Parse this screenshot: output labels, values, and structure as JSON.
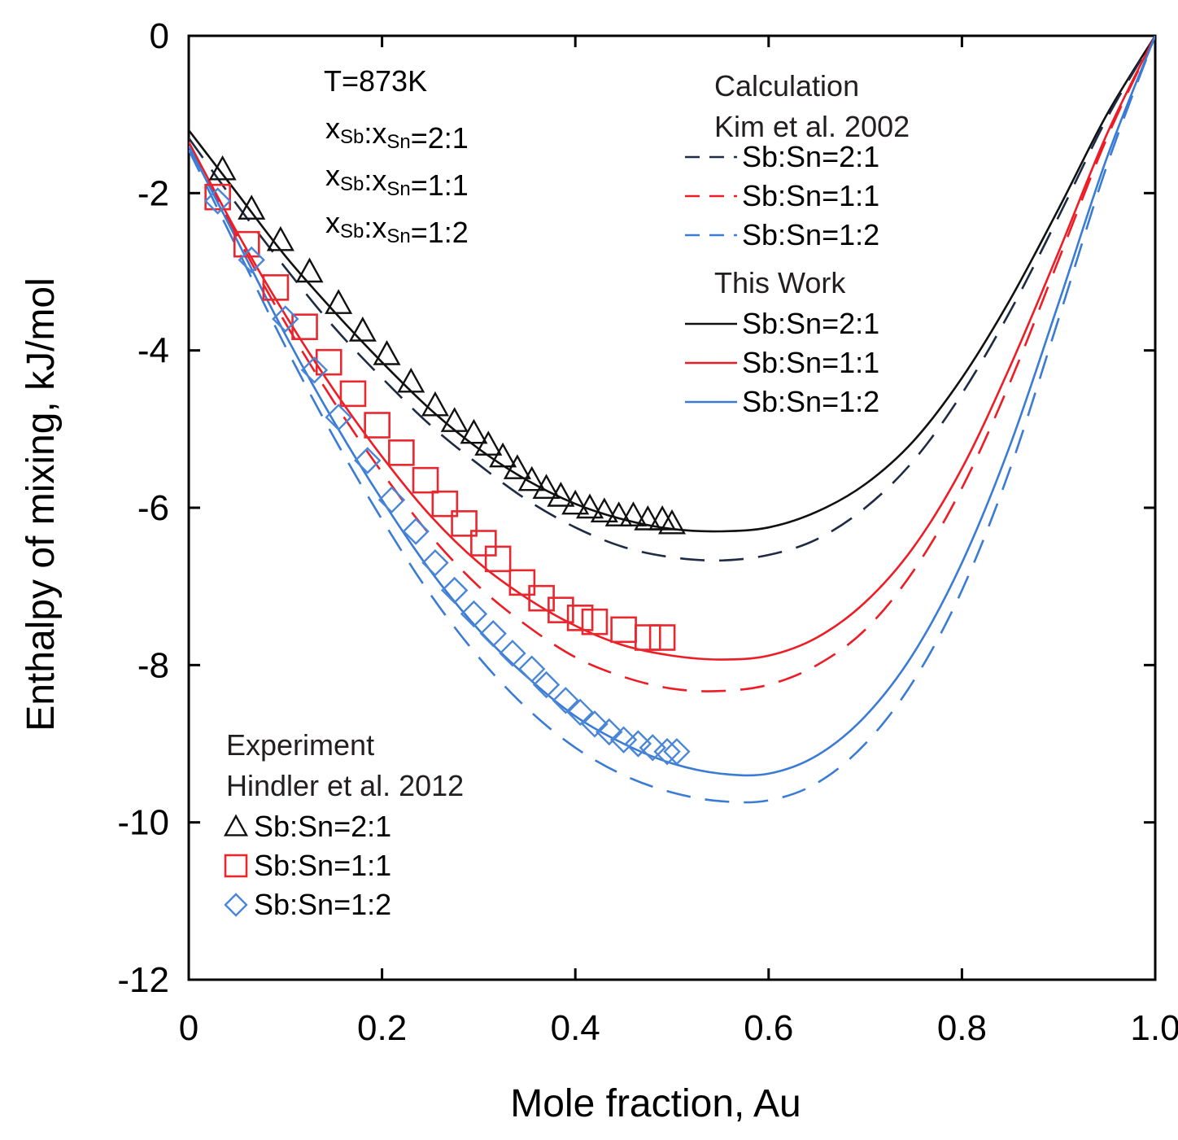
{
  "chart_data": {
    "type": "line",
    "title": "",
    "xlabel": "Mole fraction, Au",
    "ylabel": "Enthalpy of mixing, kJ/mol",
    "xlim": [
      0,
      1.0
    ],
    "ylim": [
      -12,
      0
    ],
    "xticks": [
      0,
      0.2,
      0.4,
      0.6,
      0.8,
      1.0
    ],
    "xtick_labels": [
      "0",
      "0.2",
      "0.4",
      "0.6",
      "0.8",
      "1.0"
    ],
    "yticks": [
      0,
      -2,
      -4,
      -6,
      -8,
      -10,
      -12
    ],
    "ytick_labels": [
      "0",
      "-2",
      "-4",
      "-6",
      "-8",
      "-10",
      "-12"
    ],
    "grid": false,
    "annotations": {
      "temperature": "T=873K",
      "ratios": [
        {
          "x_prefix": "x",
          "sub1": "Sb",
          "colon": ":",
          "x2": "x",
          "sub2": "Sn",
          "value": "=2:1"
        },
        {
          "x_prefix": "x",
          "sub1": "Sb",
          "colon": ":",
          "x2": "x",
          "sub2": "Sn",
          "value": "=1:1"
        },
        {
          "x_prefix": "x",
          "sub1": "Sb",
          "colon": ":",
          "x2": "x",
          "sub2": "Sn",
          "value": "=1:2"
        }
      ]
    },
    "legend": {
      "calc_header": [
        "Calculation",
        "Kim et al. 2002"
      ],
      "work_header": "This Work",
      "exp_header": [
        "Experiment",
        "Hindler et al. 2012"
      ],
      "calc_items": [
        "Sb:Sn=2:1",
        "Sb:Sn=1:1",
        "Sb:Sn=1:2"
      ],
      "work_items": [
        "Sb:Sn=2:1",
        "Sb:Sn=1:1",
        "Sb:Sn=1:2"
      ],
      "exp_items": [
        "Sb:Sn=2:1",
        "Sb:Sn=1:1",
        "Sb:Sn=1:2"
      ]
    },
    "colors": {
      "black": "#111111",
      "navy": "#1f2a44",
      "red": "#ee1c24",
      "blue": "#3a7bd5",
      "marker_red": "#e8282e",
      "marker_blue": "#4a86d8"
    },
    "series": [
      {
        "group": "This Work",
        "ratio": "Sb:Sn=2:1",
        "style": "solid",
        "color": "black",
        "x": [
          0,
          0.05,
          0.1,
          0.15,
          0.2,
          0.25,
          0.3,
          0.35,
          0.4,
          0.45,
          0.5,
          0.55,
          0.6,
          0.65,
          0.7,
          0.75,
          0.8,
          0.85,
          0.9,
          0.95,
          1.0
        ],
        "y": [
          -1.2,
          -2.0,
          -2.8,
          -3.5,
          -4.15,
          -4.75,
          -5.25,
          -5.65,
          -5.95,
          -6.15,
          -6.27,
          -6.3,
          -6.25,
          -6.05,
          -5.7,
          -5.15,
          -4.35,
          -3.35,
          -2.2,
          -1.0,
          0
        ]
      },
      {
        "group": "Calculation",
        "ratio": "Sb:Sn=2:1",
        "style": "dashed",
        "color": "navy",
        "x": [
          0,
          0.05,
          0.1,
          0.15,
          0.2,
          0.25,
          0.3,
          0.35,
          0.4,
          0.45,
          0.5,
          0.55,
          0.6,
          0.65,
          0.7,
          0.75,
          0.8,
          0.85,
          0.9,
          0.95,
          1.0
        ],
        "y": [
          -1.3,
          -2.15,
          -2.95,
          -3.7,
          -4.35,
          -4.95,
          -5.45,
          -5.9,
          -6.25,
          -6.5,
          -6.63,
          -6.67,
          -6.6,
          -6.4,
          -6.0,
          -5.4,
          -4.55,
          -3.5,
          -2.3,
          -1.05,
          0
        ]
      },
      {
        "group": "This Work",
        "ratio": "Sb:Sn=1:1",
        "style": "solid",
        "color": "red",
        "x": [
          0,
          0.05,
          0.1,
          0.15,
          0.2,
          0.25,
          0.3,
          0.35,
          0.4,
          0.45,
          0.5,
          0.55,
          0.6,
          0.65,
          0.7,
          0.75,
          0.8,
          0.85,
          0.9,
          0.95,
          1.0
        ],
        "y": [
          -1.35,
          -2.5,
          -3.55,
          -4.5,
          -5.35,
          -6.1,
          -6.7,
          -7.15,
          -7.5,
          -7.75,
          -7.88,
          -7.93,
          -7.88,
          -7.65,
          -7.2,
          -6.5,
          -5.5,
          -4.2,
          -2.75,
          -1.25,
          0
        ]
      },
      {
        "group": "Calculation",
        "ratio": "Sb:Sn=1:1",
        "style": "dashed",
        "color": "red",
        "x": [
          0,
          0.05,
          0.1,
          0.15,
          0.2,
          0.25,
          0.3,
          0.35,
          0.4,
          0.45,
          0.5,
          0.55,
          0.6,
          0.65,
          0.7,
          0.75,
          0.8,
          0.85,
          0.9,
          0.95,
          1.0
        ],
        "y": [
          -1.4,
          -2.55,
          -3.65,
          -4.65,
          -5.55,
          -6.35,
          -7.0,
          -7.5,
          -7.9,
          -8.15,
          -8.3,
          -8.33,
          -8.25,
          -8.0,
          -7.55,
          -6.8,
          -5.75,
          -4.4,
          -2.85,
          -1.3,
          0
        ]
      },
      {
        "group": "This Work",
        "ratio": "Sb:Sn=1:2",
        "style": "solid",
        "color": "blue",
        "x": [
          0,
          0.05,
          0.1,
          0.15,
          0.2,
          0.25,
          0.3,
          0.35,
          0.4,
          0.45,
          0.5,
          0.55,
          0.6,
          0.65,
          0.7,
          0.75,
          0.8,
          0.85,
          0.9,
          0.95,
          1.0
        ],
        "y": [
          -1.4,
          -2.6,
          -3.8,
          -4.9,
          -5.9,
          -6.8,
          -7.55,
          -8.15,
          -8.65,
          -9.0,
          -9.25,
          -9.38,
          -9.38,
          -9.15,
          -8.65,
          -7.85,
          -6.7,
          -5.2,
          -3.4,
          -1.55,
          0
        ]
      },
      {
        "group": "Calculation",
        "ratio": "Sb:Sn=1:2",
        "style": "dashed",
        "color": "blue",
        "x": [
          0,
          0.05,
          0.1,
          0.15,
          0.2,
          0.25,
          0.3,
          0.35,
          0.4,
          0.45,
          0.5,
          0.55,
          0.6,
          0.65,
          0.7,
          0.75,
          0.8,
          0.85,
          0.9,
          0.95,
          1.0
        ],
        "y": [
          -1.45,
          -2.7,
          -3.95,
          -5.1,
          -6.15,
          -7.1,
          -7.9,
          -8.55,
          -9.05,
          -9.4,
          -9.62,
          -9.73,
          -9.72,
          -9.5,
          -9.0,
          -8.2,
          -7.05,
          -5.5,
          -3.6,
          -1.65,
          0
        ]
      }
    ],
    "experiment": [
      {
        "ratio": "Sb:Sn=2:1",
        "marker": "triangle",
        "color": "black",
        "x": [
          0.035,
          0.065,
          0.095,
          0.125,
          0.155,
          0.18,
          0.205,
          0.23,
          0.255,
          0.275,
          0.295,
          0.31,
          0.325,
          0.34,
          0.355,
          0.37,
          0.385,
          0.4,
          0.415,
          0.43,
          0.445,
          0.46,
          0.475,
          0.49,
          0.5
        ],
        "y": [
          -1.7,
          -2.2,
          -2.6,
          -3.0,
          -3.4,
          -3.75,
          -4.05,
          -4.4,
          -4.7,
          -4.9,
          -5.05,
          -5.2,
          -5.35,
          -5.5,
          -5.65,
          -5.75,
          -5.85,
          -5.95,
          -6.0,
          -6.05,
          -6.1,
          -6.1,
          -6.15,
          -6.15,
          -6.2
        ]
      },
      {
        "ratio": "Sb:Sn=1:1",
        "marker": "square",
        "color": "marker_red",
        "x": [
          0.03,
          0.06,
          0.09,
          0.12,
          0.145,
          0.17,
          0.195,
          0.22,
          0.245,
          0.265,
          0.285,
          0.305,
          0.32,
          0.345,
          0.365,
          0.385,
          0.405,
          0.42,
          0.45,
          0.475,
          0.49
        ],
        "y": [
          -2.05,
          -2.65,
          -3.2,
          -3.7,
          -4.15,
          -4.55,
          -4.95,
          -5.3,
          -5.65,
          -5.95,
          -6.2,
          -6.45,
          -6.65,
          -6.95,
          -7.15,
          -7.3,
          -7.4,
          -7.45,
          -7.55,
          -7.65,
          -7.65
        ]
      },
      {
        "ratio": "Sb:Sn=1:2",
        "marker": "diamond",
        "color": "marker_blue",
        "x": [
          0.03,
          0.065,
          0.1,
          0.13,
          0.155,
          0.185,
          0.21,
          0.235,
          0.255,
          0.275,
          0.295,
          0.315,
          0.335,
          0.355,
          0.37,
          0.39,
          0.405,
          0.42,
          0.435,
          0.45,
          0.465,
          0.48,
          0.495,
          0.505
        ],
        "y": [
          -2.1,
          -2.85,
          -3.6,
          -4.25,
          -4.85,
          -5.4,
          -5.9,
          -6.3,
          -6.7,
          -7.05,
          -7.35,
          -7.6,
          -7.85,
          -8.05,
          -8.25,
          -8.45,
          -8.6,
          -8.75,
          -8.85,
          -8.95,
          -9.0,
          -9.05,
          -9.1,
          -9.1
        ]
      }
    ]
  }
}
